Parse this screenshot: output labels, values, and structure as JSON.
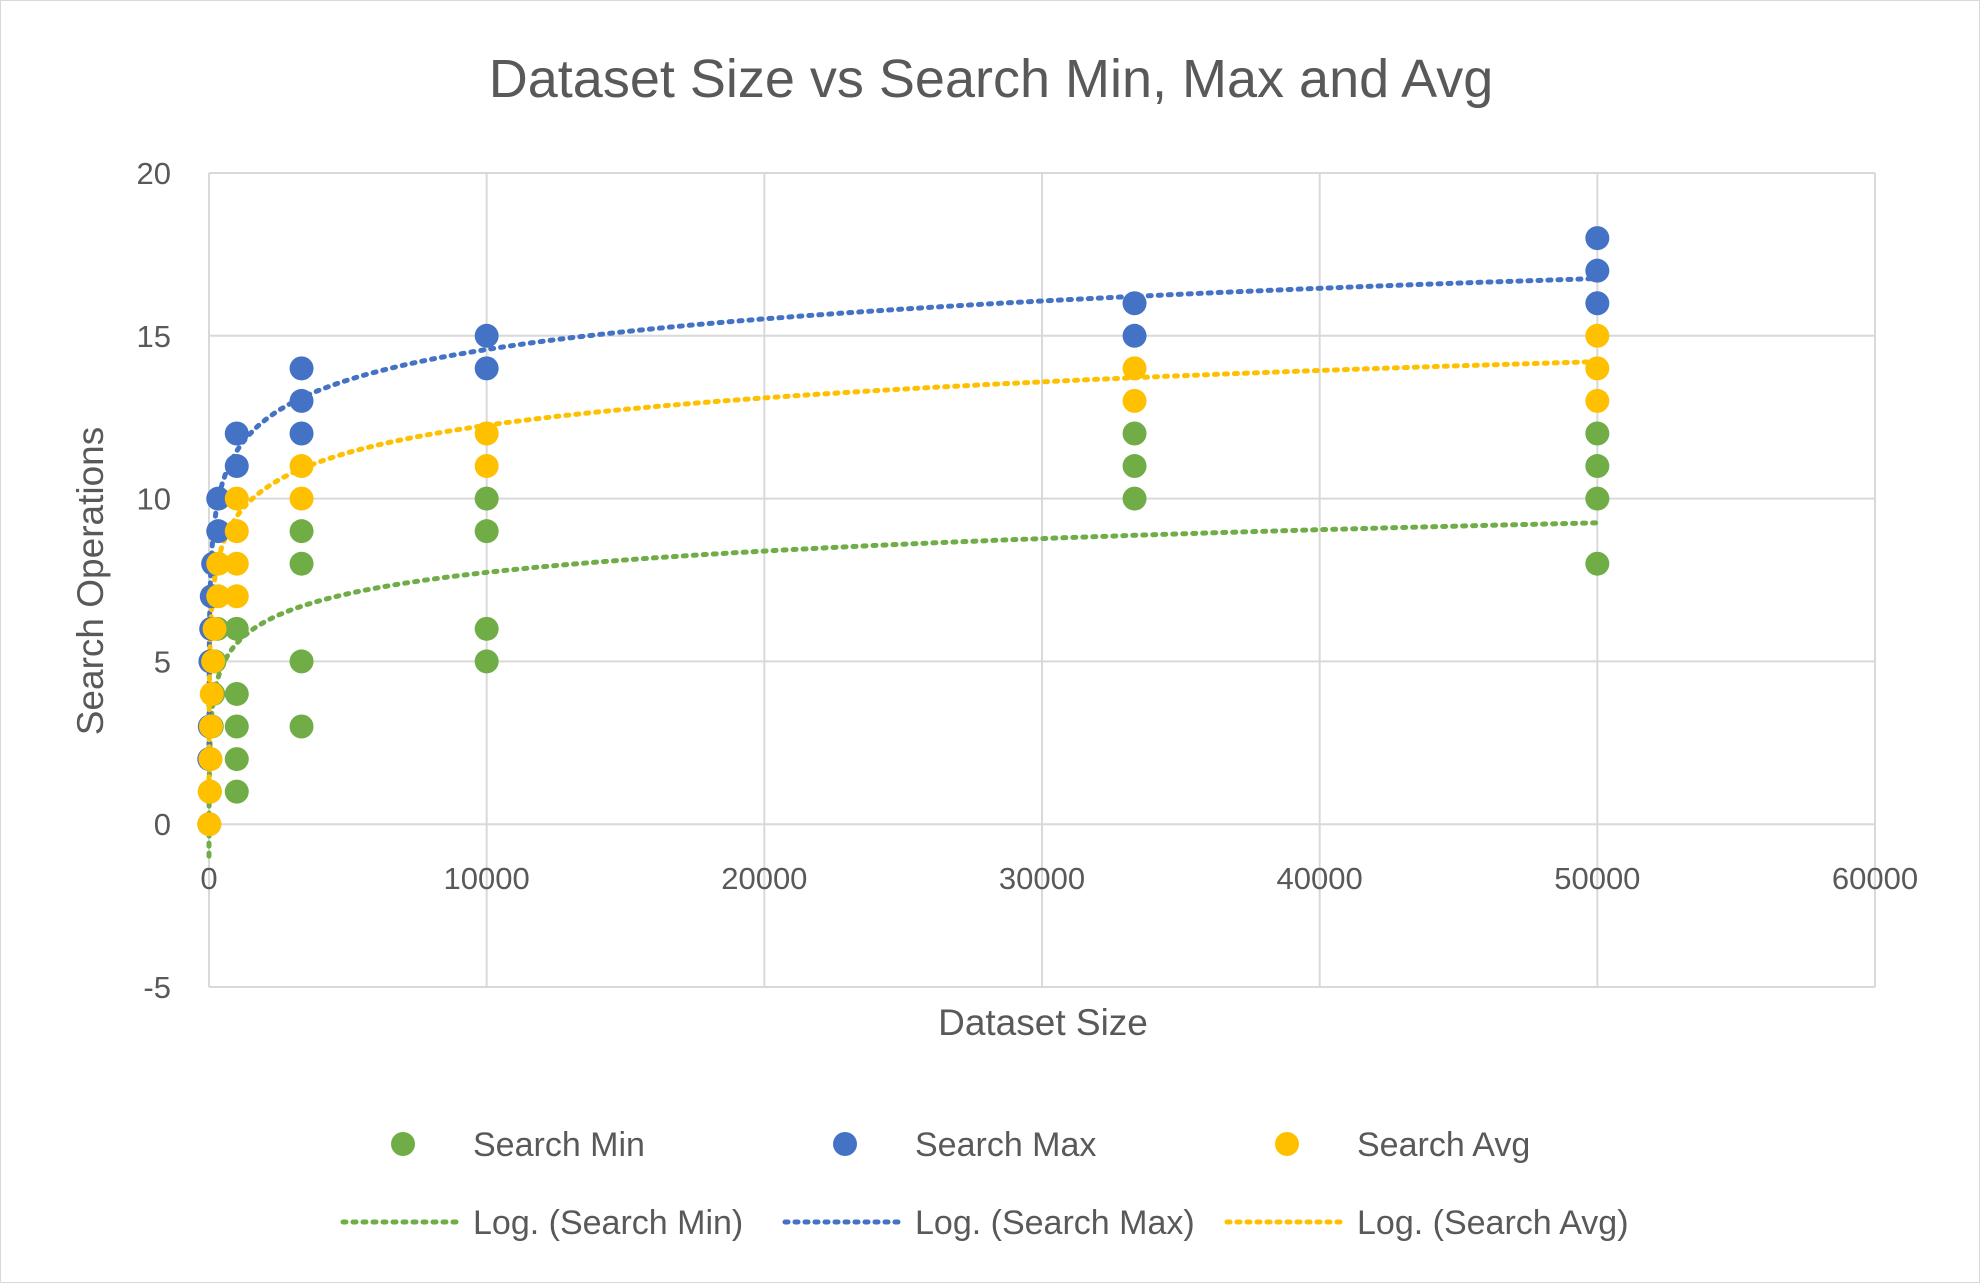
{
  "chart_data": {
    "type": "scatter",
    "title": "Dataset Size vs Search Min, Max and Avg",
    "xlabel": "Dataset Size",
    "ylabel": "Search Operations",
    "xlim": [
      0,
      60000
    ],
    "ylim": [
      -5,
      20
    ],
    "x_ticks": [
      0,
      10000,
      20000,
      30000,
      40000,
      50000,
      60000
    ],
    "y_ticks": [
      -5,
      0,
      5,
      10,
      15,
      20
    ],
    "x_tick_labels": [
      "0",
      "10000",
      "20000",
      "30000",
      "40000",
      "50000",
      "60000"
    ],
    "y_tick_labels": [
      "-5",
      "0",
      "5",
      "10",
      "15",
      "20"
    ],
    "grid": true,
    "legend_position": "bottom",
    "series": [
      {
        "name": "Search Min",
        "color": "#70ad47",
        "points": [
          [
            10,
            0
          ],
          [
            30,
            1
          ],
          [
            50,
            2
          ],
          [
            100,
            3
          ],
          [
            150,
            4
          ],
          [
            200,
            5
          ],
          [
            300,
            6
          ],
          [
            1000,
            1
          ],
          [
            1000,
            2
          ],
          [
            1000,
            3
          ],
          [
            1000,
            4
          ],
          [
            1000,
            6
          ],
          [
            3333,
            3
          ],
          [
            3333,
            5
          ],
          [
            3333,
            8
          ],
          [
            3333,
            9
          ],
          [
            10000,
            5
          ],
          [
            10000,
            6
          ],
          [
            10000,
            9
          ],
          [
            10000,
            10
          ],
          [
            33333,
            10
          ],
          [
            33333,
            11
          ],
          [
            33333,
            12
          ],
          [
            50000,
            8
          ],
          [
            50000,
            10
          ],
          [
            50000,
            11
          ],
          [
            50000,
            12
          ]
        ]
      },
      {
        "name": "Search Max",
        "color": "#4472c4",
        "points": [
          [
            10,
            2
          ],
          [
            30,
            3
          ],
          [
            50,
            5
          ],
          [
            80,
            6
          ],
          [
            100,
            7
          ],
          [
            150,
            8
          ],
          [
            333,
            9
          ],
          [
            333,
            10
          ],
          [
            1000,
            11
          ],
          [
            1000,
            12
          ],
          [
            3333,
            12
          ],
          [
            3333,
            13
          ],
          [
            3333,
            14
          ],
          [
            10000,
            14
          ],
          [
            10000,
            15
          ],
          [
            33333,
            15
          ],
          [
            33333,
            16
          ],
          [
            50000,
            16
          ],
          [
            50000,
            17
          ],
          [
            50000,
            18
          ]
        ]
      },
      {
        "name": "Search Avg",
        "color": "#ffc000",
        "points": [
          [
            10,
            0
          ],
          [
            30,
            1
          ],
          [
            50,
            2
          ],
          [
            70,
            3
          ],
          [
            100,
            4
          ],
          [
            150,
            5
          ],
          [
            200,
            6
          ],
          [
            333,
            7
          ],
          [
            333,
            8
          ],
          [
            1000,
            7
          ],
          [
            1000,
            8
          ],
          [
            1000,
            9
          ],
          [
            1000,
            10
          ],
          [
            3333,
            10
          ],
          [
            3333,
            11
          ],
          [
            10000,
            11
          ],
          [
            10000,
            12
          ],
          [
            33333,
            13
          ],
          [
            33333,
            14
          ],
          [
            50000,
            13
          ],
          [
            50000,
            14
          ],
          [
            50000,
            15
          ]
        ]
      }
    ],
    "trendlines": [
      {
        "name": "Log. (Search Min)",
        "type": "logarithmic",
        "of": "Search Min",
        "color": "#70ad47",
        "a": 1.0,
        "b": 0.946
      },
      {
        "name": "Log. (Search Max)",
        "type": "logarithmic",
        "of": "Search Max",
        "color": "#4472c4",
        "a": 2.1,
        "b": 1.36
      },
      {
        "name": "Log. (Search Avg)",
        "type": "logarithmic",
        "of": "Search Avg",
        "color": "#ffc000",
        "a": 1.2,
        "b": 1.2
      }
    ]
  }
}
